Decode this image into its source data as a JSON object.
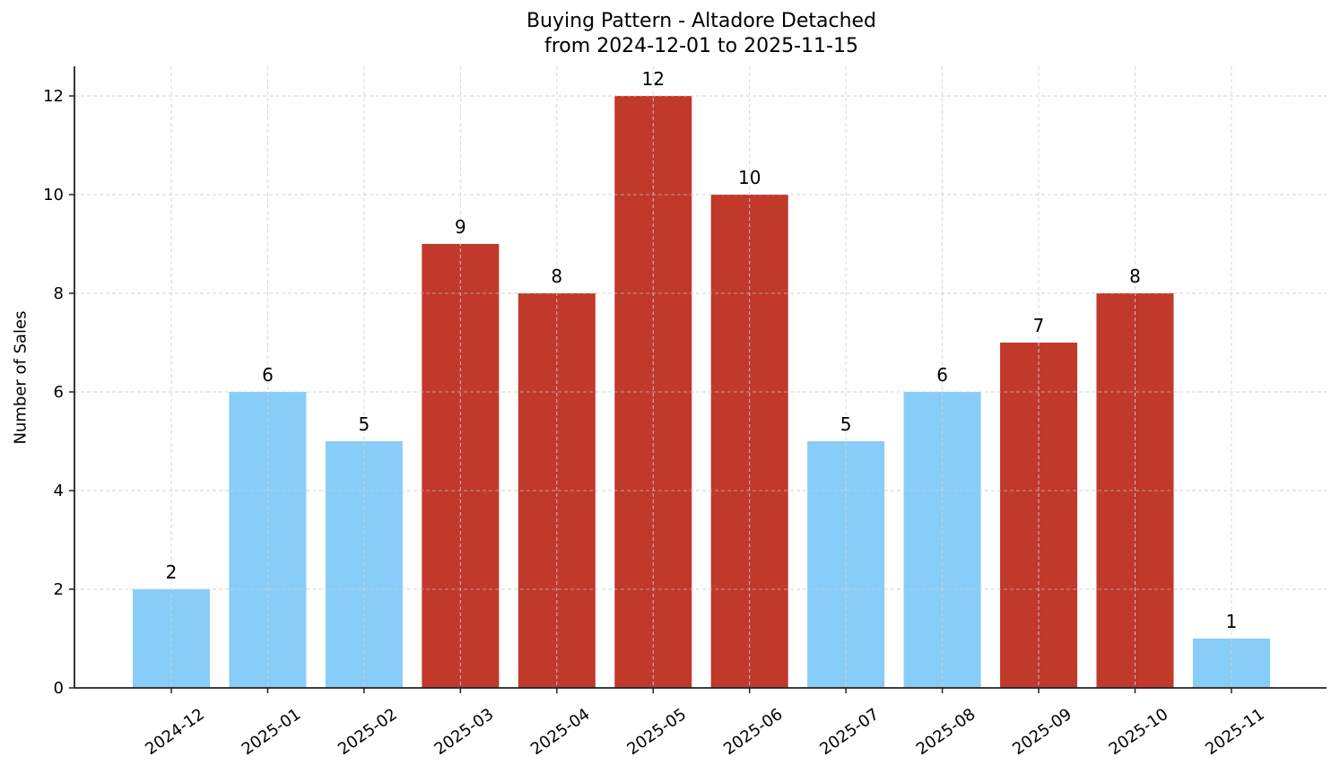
{
  "chart_data": {
    "type": "bar",
    "title": "Buying Pattern - Altadore Detached",
    "subtitle": "from 2024-12-01 to 2025-11-15",
    "xlabel": "",
    "ylabel": "Number of Sales",
    "categories": [
      "2024-12",
      "2025-01",
      "2025-02",
      "2025-03",
      "2025-04",
      "2025-05",
      "2025-06",
      "2025-07",
      "2025-08",
      "2025-09",
      "2025-10",
      "2025-11"
    ],
    "values": [
      2,
      6,
      5,
      9,
      8,
      12,
      10,
      5,
      6,
      7,
      8,
      1
    ],
    "bar_colors": [
      "#87cdf8",
      "#87cdf8",
      "#87cdf8",
      "#c0392b",
      "#c0392b",
      "#c0392b",
      "#c0392b",
      "#87cdf8",
      "#87cdf8",
      "#c0392b",
      "#c0392b",
      "#87cdf8"
    ],
    "data_labels": [
      "2",
      "6",
      "5",
      "9",
      "8",
      "12",
      "10",
      "5",
      "6",
      "7",
      "8",
      "1"
    ],
    "yticks": [
      0,
      2,
      4,
      6,
      8,
      10,
      12
    ],
    "ylim": [
      0,
      12.6
    ],
    "grid": true,
    "legend": null,
    "xtick_rotation": 35
  },
  "colors": {
    "low": "#87cdf8",
    "high": "#c0392b",
    "grid": "#d3d3d3",
    "axis": "#222222"
  }
}
